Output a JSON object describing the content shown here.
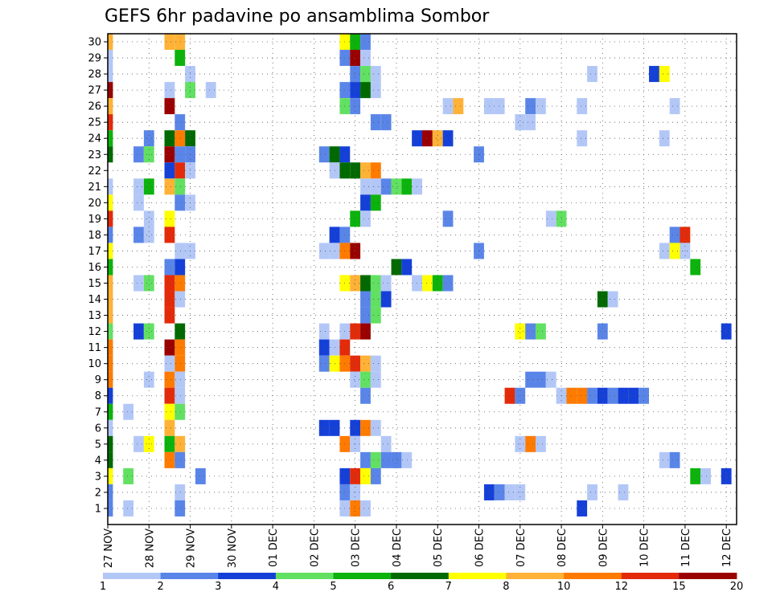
{
  "chart_data": {
    "type": "heatmap",
    "title": "GEFS 6hr padavine po ansamblima Sombor",
    "y_categories": [
      "1",
      "2",
      "3",
      "4",
      "5",
      "6",
      "7",
      "8",
      "9",
      "10",
      "11",
      "12",
      "13",
      "14",
      "15",
      "16",
      "17",
      "18",
      "19",
      "20",
      "21",
      "22",
      "23",
      "24",
      "25",
      "26",
      "27",
      "28",
      "29",
      "30"
    ],
    "x_tick_labels": [
      "27 NOV",
      "28 NOV",
      "29 NOV",
      "30 NOV",
      "01 DEC",
      "02 DEC",
      "03 DEC",
      "04 DEC",
      "05 DEC",
      "06 DEC",
      "07 DEC",
      "08 DEC",
      "09 DEC",
      "10 DEC",
      "11 DEC",
      "12 DEC"
    ],
    "steps_per_day": 4,
    "n_steps": 61,
    "grid": true,
    "colorbar": {
      "labels": [
        "1",
        "2",
        "3",
        "4",
        "5",
        "6",
        "7",
        "8",
        "10",
        "12",
        "15",
        "20"
      ],
      "colors": [
        "#b3c7f7",
        "#5a85e8",
        "#1540d8",
        "#62e062",
        "#0cb30c",
        "#006a00",
        "#ffff00",
        "#ffb236",
        "#ff7b00",
        "#e32b0a",
        "#9a0000"
      ]
    },
    "cells": [
      {
        "m": 30,
        "s": 0,
        "c": 8
      },
      {
        "m": 30,
        "s": 6,
        "c": 8
      },
      {
        "m": 30,
        "s": 7,
        "c": 8
      },
      {
        "m": 30,
        "s": 23,
        "c": 7
      },
      {
        "m": 30,
        "s": 24,
        "c": 5
      },
      {
        "m": 30,
        "s": 25,
        "c": 2
      },
      {
        "m": 29,
        "s": 0,
        "c": 1
      },
      {
        "m": 29,
        "s": 7,
        "c": 5
      },
      {
        "m": 29,
        "s": 23,
        "c": 2
      },
      {
        "m": 29,
        "s": 24,
        "c": 11
      },
      {
        "m": 29,
        "s": 25,
        "c": 1
      },
      {
        "m": 28,
        "s": 0,
        "c": 1
      },
      {
        "m": 28,
        "s": 8,
        "c": 1
      },
      {
        "m": 28,
        "s": 24,
        "c": 2
      },
      {
        "m": 28,
        "s": 25,
        "c": 4
      },
      {
        "m": 28,
        "s": 26,
        "c": 1
      },
      {
        "m": 28,
        "s": 47,
        "c": 1
      },
      {
        "m": 28,
        "s": 53,
        "c": 3
      },
      {
        "m": 28,
        "s": 54,
        "c": 7
      },
      {
        "m": 27,
        "s": 0,
        "c": 11
      },
      {
        "m": 27,
        "s": 6,
        "c": 1
      },
      {
        "m": 27,
        "s": 8,
        "c": 4
      },
      {
        "m": 27,
        "s": 10,
        "c": 1
      },
      {
        "m": 27,
        "s": 23,
        "c": 2
      },
      {
        "m": 27,
        "s": 24,
        "c": 3
      },
      {
        "m": 27,
        "s": 25,
        "c": 6
      },
      {
        "m": 27,
        "s": 26,
        "c": 1
      },
      {
        "m": 26,
        "s": 0,
        "c": 8
      },
      {
        "m": 26,
        "s": 6,
        "c": 11
      },
      {
        "m": 26,
        "s": 23,
        "c": 4
      },
      {
        "m": 26,
        "s": 24,
        "c": 2
      },
      {
        "m": 26,
        "s": 33,
        "c": 1
      },
      {
        "m": 26,
        "s": 34,
        "c": 8
      },
      {
        "m": 26,
        "s": 37,
        "c": 1
      },
      {
        "m": 26,
        "s": 38,
        "c": 1
      },
      {
        "m": 26,
        "s": 41,
        "c": 2
      },
      {
        "m": 26,
        "s": 42,
        "c": 1
      },
      {
        "m": 26,
        "s": 46,
        "c": 1
      },
      {
        "m": 26,
        "s": 55,
        "c": 1
      },
      {
        "m": 25,
        "s": 0,
        "c": 10
      },
      {
        "m": 25,
        "s": 7,
        "c": 2
      },
      {
        "m": 25,
        "s": 26,
        "c": 2
      },
      {
        "m": 25,
        "s": 27,
        "c": 2
      },
      {
        "m": 25,
        "s": 40,
        "c": 1
      },
      {
        "m": 25,
        "s": 41,
        "c": 1
      },
      {
        "m": 24,
        "s": 0,
        "c": 5
      },
      {
        "m": 24,
        "s": 4,
        "c": 2
      },
      {
        "m": 24,
        "s": 6,
        "c": 6
      },
      {
        "m": 24,
        "s": 7,
        "c": 9
      },
      {
        "m": 24,
        "s": 8,
        "c": 6
      },
      {
        "m": 24,
        "s": 30,
        "c": 3
      },
      {
        "m": 24,
        "s": 31,
        "c": 11
      },
      {
        "m": 24,
        "s": 32,
        "c": 8
      },
      {
        "m": 24,
        "s": 33,
        "c": 3
      },
      {
        "m": 24,
        "s": 46,
        "c": 1
      },
      {
        "m": 24,
        "s": 54,
        "c": 1
      },
      {
        "m": 23,
        "s": 0,
        "c": 6
      },
      {
        "m": 23,
        "s": 3,
        "c": 2
      },
      {
        "m": 23,
        "s": 4,
        "c": 4
      },
      {
        "m": 23,
        "s": 6,
        "c": 11
      },
      {
        "m": 23,
        "s": 7,
        "c": 2
      },
      {
        "m": 23,
        "s": 8,
        "c": 2
      },
      {
        "m": 23,
        "s": 21,
        "c": 2
      },
      {
        "m": 23,
        "s": 22,
        "c": 6
      },
      {
        "m": 23,
        "s": 23,
        "c": 3
      },
      {
        "m": 23,
        "s": 36,
        "c": 2
      },
      {
        "m": 22,
        "s": 6,
        "c": 3
      },
      {
        "m": 22,
        "s": 7,
        "c": 10
      },
      {
        "m": 22,
        "s": 8,
        "c": 1
      },
      {
        "m": 22,
        "s": 22,
        "c": 1
      },
      {
        "m": 22,
        "s": 23,
        "c": 6
      },
      {
        "m": 22,
        "s": 24,
        "c": 6
      },
      {
        "m": 22,
        "s": 25,
        "c": 8
      },
      {
        "m": 22,
        "s": 26,
        "c": 9
      },
      {
        "m": 21,
        "s": 0,
        "c": 1
      },
      {
        "m": 21,
        "s": 3,
        "c": 1
      },
      {
        "m": 21,
        "s": 4,
        "c": 5
      },
      {
        "m": 21,
        "s": 6,
        "c": 8
      },
      {
        "m": 21,
        "s": 7,
        "c": 4
      },
      {
        "m": 21,
        "s": 25,
        "c": 1
      },
      {
        "m": 21,
        "s": 26,
        "c": 1
      },
      {
        "m": 21,
        "s": 27,
        "c": 2
      },
      {
        "m": 21,
        "s": 28,
        "c": 4
      },
      {
        "m": 21,
        "s": 29,
        "c": 5
      },
      {
        "m": 21,
        "s": 30,
        "c": 1
      },
      {
        "m": 20,
        "s": 0,
        "c": 7
      },
      {
        "m": 20,
        "s": 3,
        "c": 1
      },
      {
        "m": 20,
        "s": 7,
        "c": 2
      },
      {
        "m": 20,
        "s": 8,
        "c": 1
      },
      {
        "m": 20,
        "s": 25,
        "c": 3
      },
      {
        "m": 20,
        "s": 26,
        "c": 5
      },
      {
        "m": 19,
        "s": 0,
        "c": 10
      },
      {
        "m": 19,
        "s": 4,
        "c": 1
      },
      {
        "m": 19,
        "s": 6,
        "c": 7
      },
      {
        "m": 19,
        "s": 24,
        "c": 5
      },
      {
        "m": 19,
        "s": 25,
        "c": 1
      },
      {
        "m": 19,
        "s": 33,
        "c": 2
      },
      {
        "m": 19,
        "s": 43,
        "c": 1
      },
      {
        "m": 19,
        "s": 44,
        "c": 4
      },
      {
        "m": 18,
        "s": 0,
        "c": 2
      },
      {
        "m": 18,
        "s": 3,
        "c": 2
      },
      {
        "m": 18,
        "s": 4,
        "c": 1
      },
      {
        "m": 18,
        "s": 6,
        "c": 10
      },
      {
        "m": 18,
        "s": 22,
        "c": 3
      },
      {
        "m": 18,
        "s": 23,
        "c": 2
      },
      {
        "m": 18,
        "s": 55,
        "c": 2
      },
      {
        "m": 18,
        "s": 56,
        "c": 10
      },
      {
        "m": 17,
        "s": 0,
        "c": 7
      },
      {
        "m": 17,
        "s": 7,
        "c": 1
      },
      {
        "m": 17,
        "s": 8,
        "c": 1
      },
      {
        "m": 17,
        "s": 21,
        "c": 1
      },
      {
        "m": 17,
        "s": 22,
        "c": 1
      },
      {
        "m": 17,
        "s": 23,
        "c": 9
      },
      {
        "m": 17,
        "s": 24,
        "c": 11
      },
      {
        "m": 17,
        "s": 36,
        "c": 2
      },
      {
        "m": 17,
        "s": 54,
        "c": 1
      },
      {
        "m": 17,
        "s": 55,
        "c": 7
      },
      {
        "m": 17,
        "s": 56,
        "c": 1
      },
      {
        "m": 16,
        "s": 0,
        "c": 5
      },
      {
        "m": 16,
        "s": 6,
        "c": 2
      },
      {
        "m": 16,
        "s": 7,
        "c": 3
      },
      {
        "m": 16,
        "s": 28,
        "c": 6
      },
      {
        "m": 16,
        "s": 29,
        "c": 3
      },
      {
        "m": 16,
        "s": 57,
        "c": 5
      },
      {
        "m": 15,
        "s": 0,
        "c": 8
      },
      {
        "m": 15,
        "s": 3,
        "c": 1
      },
      {
        "m": 15,
        "s": 4,
        "c": 4
      },
      {
        "m": 15,
        "s": 6,
        "c": 10
      },
      {
        "m": 15,
        "s": 7,
        "c": 9
      },
      {
        "m": 15,
        "s": 23,
        "c": 7
      },
      {
        "m": 15,
        "s": 24,
        "c": 8
      },
      {
        "m": 15,
        "s": 25,
        "c": 6
      },
      {
        "m": 15,
        "s": 26,
        "c": 4
      },
      {
        "m": 15,
        "s": 27,
        "c": 1
      },
      {
        "m": 15,
        "s": 30,
        "c": 1
      },
      {
        "m": 15,
        "s": 31,
        "c": 7
      },
      {
        "m": 15,
        "s": 32,
        "c": 5
      },
      {
        "m": 15,
        "s": 33,
        "c": 2
      },
      {
        "m": 14,
        "s": 0,
        "c": 8
      },
      {
        "m": 14,
        "s": 6,
        "c": 10
      },
      {
        "m": 14,
        "s": 7,
        "c": 1
      },
      {
        "m": 14,
        "s": 25,
        "c": 2
      },
      {
        "m": 14,
        "s": 26,
        "c": 4
      },
      {
        "m": 14,
        "s": 27,
        "c": 3
      },
      {
        "m": 14,
        "s": 48,
        "c": 6
      },
      {
        "m": 14,
        "s": 49,
        "c": 1
      },
      {
        "m": 13,
        "s": 0,
        "c": 8
      },
      {
        "m": 13,
        "s": 6,
        "c": 10
      },
      {
        "m": 13,
        "s": 25,
        "c": 2
      },
      {
        "m": 13,
        "s": 26,
        "c": 4
      },
      {
        "m": 12,
        "s": 0,
        "c": 4
      },
      {
        "m": 12,
        "s": 3,
        "c": 3
      },
      {
        "m": 12,
        "s": 4,
        "c": 4
      },
      {
        "m": 12,
        "s": 7,
        "c": 6
      },
      {
        "m": 12,
        "s": 21,
        "c": 1
      },
      {
        "m": 12,
        "s": 23,
        "c": 1
      },
      {
        "m": 12,
        "s": 24,
        "c": 10
      },
      {
        "m": 12,
        "s": 25,
        "c": 11
      },
      {
        "m": 12,
        "s": 40,
        "c": 7
      },
      {
        "m": 12,
        "s": 41,
        "c": 2
      },
      {
        "m": 12,
        "s": 42,
        "c": 4
      },
      {
        "m": 12,
        "s": 48,
        "c": 2
      },
      {
        "m": 12,
        "s": 60,
        "c": 3
      },
      {
        "m": 11,
        "s": 0,
        "c": 9
      },
      {
        "m": 11,
        "s": 6,
        "c": 11
      },
      {
        "m": 11,
        "s": 7,
        "c": 9
      },
      {
        "m": 11,
        "s": 21,
        "c": 3
      },
      {
        "m": 11,
        "s": 22,
        "c": 1
      },
      {
        "m": 11,
        "s": 23,
        "c": 10
      },
      {
        "m": 10,
        "s": 0,
        "c": 9
      },
      {
        "m": 10,
        "s": 6,
        "c": 1
      },
      {
        "m": 10,
        "s": 7,
        "c": 9
      },
      {
        "m": 10,
        "s": 21,
        "c": 2
      },
      {
        "m": 10,
        "s": 22,
        "c": 7
      },
      {
        "m": 10,
        "s": 23,
        "c": 9
      },
      {
        "m": 10,
        "s": 24,
        "c": 10
      },
      {
        "m": 10,
        "s": 25,
        "c": 8
      },
      {
        "m": 10,
        "s": 26,
        "c": 1
      },
      {
        "m": 9,
        "s": 0,
        "c": 9
      },
      {
        "m": 9,
        "s": 4,
        "c": 1
      },
      {
        "m": 9,
        "s": 6,
        "c": 9
      },
      {
        "m": 9,
        "s": 7,
        "c": 1
      },
      {
        "m": 9,
        "s": 24,
        "c": 1
      },
      {
        "m": 9,
        "s": 25,
        "c": 4
      },
      {
        "m": 9,
        "s": 26,
        "c": 1
      },
      {
        "m": 9,
        "s": 41,
        "c": 2
      },
      {
        "m": 9,
        "s": 42,
        "c": 2
      },
      {
        "m": 9,
        "s": 43,
        "c": 1
      },
      {
        "m": 8,
        "s": 0,
        "c": 3
      },
      {
        "m": 8,
        "s": 6,
        "c": 10
      },
      {
        "m": 8,
        "s": 7,
        "c": 1
      },
      {
        "m": 8,
        "s": 25,
        "c": 2
      },
      {
        "m": 8,
        "s": 39,
        "c": 10
      },
      {
        "m": 8,
        "s": 40,
        "c": 2
      },
      {
        "m": 8,
        "s": 44,
        "c": 1
      },
      {
        "m": 8,
        "s": 45,
        "c": 9
      },
      {
        "m": 8,
        "s": 46,
        "c": 9
      },
      {
        "m": 8,
        "s": 47,
        "c": 2
      },
      {
        "m": 8,
        "s": 48,
        "c": 3
      },
      {
        "m": 8,
        "s": 49,
        "c": 2
      },
      {
        "m": 8,
        "s": 50,
        "c": 3
      },
      {
        "m": 8,
        "s": 51,
        "c": 3
      },
      {
        "m": 8,
        "s": 52,
        "c": 2
      },
      {
        "m": 7,
        "s": 0,
        "c": 5
      },
      {
        "m": 7,
        "s": 2,
        "c": 1
      },
      {
        "m": 7,
        "s": 6,
        "c": 7
      },
      {
        "m": 7,
        "s": 7,
        "c": 4
      },
      {
        "m": 6,
        "s": 0,
        "c": 1
      },
      {
        "m": 6,
        "s": 6,
        "c": 8
      },
      {
        "m": 6,
        "s": 21,
        "c": 3
      },
      {
        "m": 6,
        "s": 22,
        "c": 3
      },
      {
        "m": 6,
        "s": 24,
        "c": 3
      },
      {
        "m": 6,
        "s": 25,
        "c": 9
      },
      {
        "m": 6,
        "s": 26,
        "c": 1
      },
      {
        "m": 5,
        "s": 0,
        "c": 6
      },
      {
        "m": 5,
        "s": 3,
        "c": 1
      },
      {
        "m": 5,
        "s": 4,
        "c": 7
      },
      {
        "m": 5,
        "s": 6,
        "c": 5
      },
      {
        "m": 5,
        "s": 7,
        "c": 8
      },
      {
        "m": 5,
        "s": 23,
        "c": 9
      },
      {
        "m": 5,
        "s": 24,
        "c": 1
      },
      {
        "m": 5,
        "s": 27,
        "c": 1
      },
      {
        "m": 5,
        "s": 40,
        "c": 1
      },
      {
        "m": 5,
        "s": 41,
        "c": 9
      },
      {
        "m": 5,
        "s": 42,
        "c": 1
      },
      {
        "m": 4,
        "s": 0,
        "c": 6
      },
      {
        "m": 4,
        "s": 6,
        "c": 9
      },
      {
        "m": 4,
        "s": 7,
        "c": 2
      },
      {
        "m": 4,
        "s": 25,
        "c": 2
      },
      {
        "m": 4,
        "s": 26,
        "c": 4
      },
      {
        "m": 4,
        "s": 27,
        "c": 2
      },
      {
        "m": 4,
        "s": 28,
        "c": 2
      },
      {
        "m": 4,
        "s": 29,
        "c": 1
      },
      {
        "m": 4,
        "s": 54,
        "c": 1
      },
      {
        "m": 4,
        "s": 55,
        "c": 2
      },
      {
        "m": 3,
        "s": 0,
        "c": 7
      },
      {
        "m": 3,
        "s": 2,
        "c": 4
      },
      {
        "m": 3,
        "s": 9,
        "c": 2
      },
      {
        "m": 3,
        "s": 23,
        "c": 3
      },
      {
        "m": 3,
        "s": 24,
        "c": 10
      },
      {
        "m": 3,
        "s": 25,
        "c": 7
      },
      {
        "m": 3,
        "s": 26,
        "c": 2
      },
      {
        "m": 3,
        "s": 57,
        "c": 5
      },
      {
        "m": 3,
        "s": 58,
        "c": 1
      },
      {
        "m": 3,
        "s": 60,
        "c": 3
      },
      {
        "m": 2,
        "s": 0,
        "c": 2
      },
      {
        "m": 2,
        "s": 7,
        "c": 1
      },
      {
        "m": 2,
        "s": 23,
        "c": 2
      },
      {
        "m": 2,
        "s": 24,
        "c": 1
      },
      {
        "m": 2,
        "s": 37,
        "c": 3
      },
      {
        "m": 2,
        "s": 38,
        "c": 2
      },
      {
        "m": 2,
        "s": 39,
        "c": 1
      },
      {
        "m": 2,
        "s": 40,
        "c": 1
      },
      {
        "m": 2,
        "s": 47,
        "c": 1
      },
      {
        "m": 2,
        "s": 50,
        "c": 1
      },
      {
        "m": 1,
        "s": 0,
        "c": 2
      },
      {
        "m": 1,
        "s": 2,
        "c": 1
      },
      {
        "m": 1,
        "s": 7,
        "c": 2
      },
      {
        "m": 1,
        "s": 23,
        "c": 1
      },
      {
        "m": 1,
        "s": 24,
        "c": 9
      },
      {
        "m": 1,
        "s": 25,
        "c": 1
      },
      {
        "m": 1,
        "s": 46,
        "c": 3
      }
    ]
  }
}
